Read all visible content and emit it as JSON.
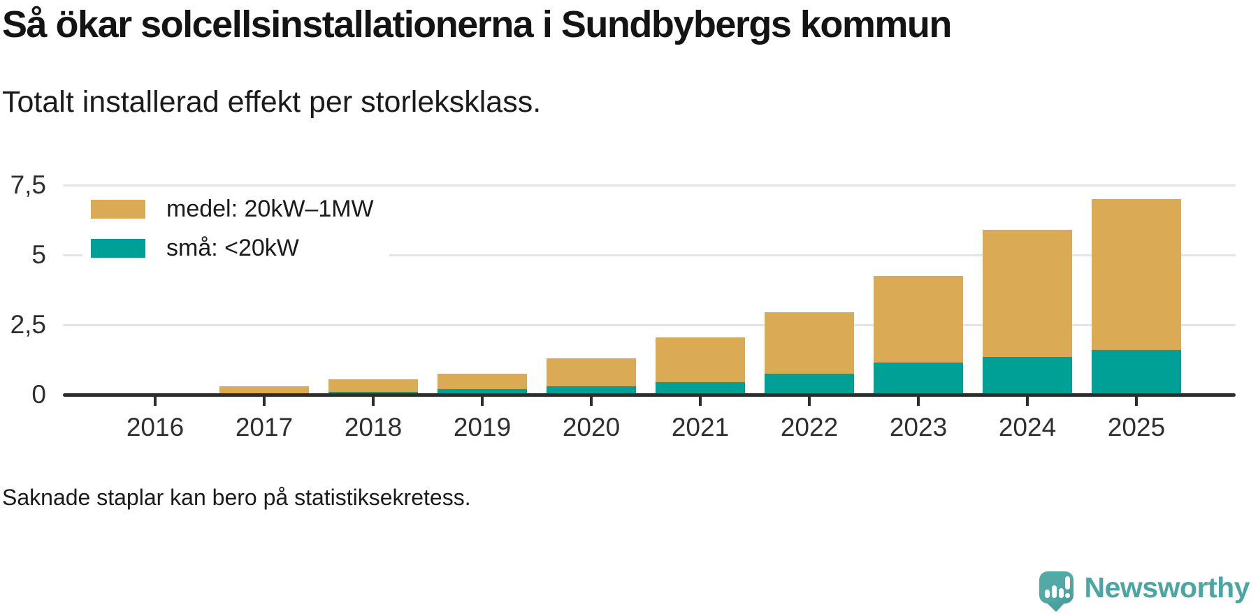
{
  "header": {
    "title": "Så ökar solcellsinstallationerna i Sundbybergs kommun",
    "subtitle": "Totalt installerad effekt per storleksklass."
  },
  "footer": {
    "note": "Saknade staplar kan bero på statistiksekretess."
  },
  "branding": {
    "name": "Newsworthy",
    "icon": "bar-chart-speech-bubble-icon",
    "color": "#4BA5A2"
  },
  "colors": {
    "medel": "#DBAA55",
    "sma": "#00A096",
    "axis": "#2D2D2D",
    "grid": "#E4E4E4",
    "text": "#151515"
  },
  "chart_data": {
    "type": "bar",
    "stacked": true,
    "title": "Så ökar solcellsinstallationerna i Sundbybergs kommun",
    "subtitle": "Totalt installerad effekt per storleksklass.",
    "categories": [
      "2016",
      "2017",
      "2018",
      "2019",
      "2020",
      "2021",
      "2022",
      "2023",
      "2024",
      "2025"
    ],
    "series": [
      {
        "name": "medel: 20kW–1MW",
        "color": "#DBAA55",
        "values": [
          null,
          0.3,
          0.45,
          0.55,
          1.0,
          1.6,
          2.2,
          3.1,
          4.55,
          5.4
        ]
      },
      {
        "name": "små: <20kW",
        "color": "#00A096",
        "values": [
          null,
          0,
          0.1,
          0.2,
          0.3,
          0.45,
          0.75,
          1.15,
          1.35,
          1.6
        ]
      }
    ],
    "stack_order_bottom_to_top": [
      "små: <20kW",
      "medel: 20kW–1MW"
    ],
    "totals": [
      null,
      0.3,
      0.55,
      0.75,
      1.3,
      2.05,
      2.95,
      4.25,
      5.9,
      7.0
    ],
    "xlabel": "",
    "ylabel": "",
    "ylim": [
      0,
      7.5
    ],
    "yticks": [
      {
        "value": 0,
        "label": "0"
      },
      {
        "value": 2.5,
        "label": "2,5"
      },
      {
        "value": 5,
        "label": "5"
      },
      {
        "value": 7.5,
        "label": "7,5"
      }
    ],
    "grid": "horizontal",
    "legend_position": "top-left",
    "missing_bars_note": "Saknade staplar kan bero på statistiksekretess."
  }
}
